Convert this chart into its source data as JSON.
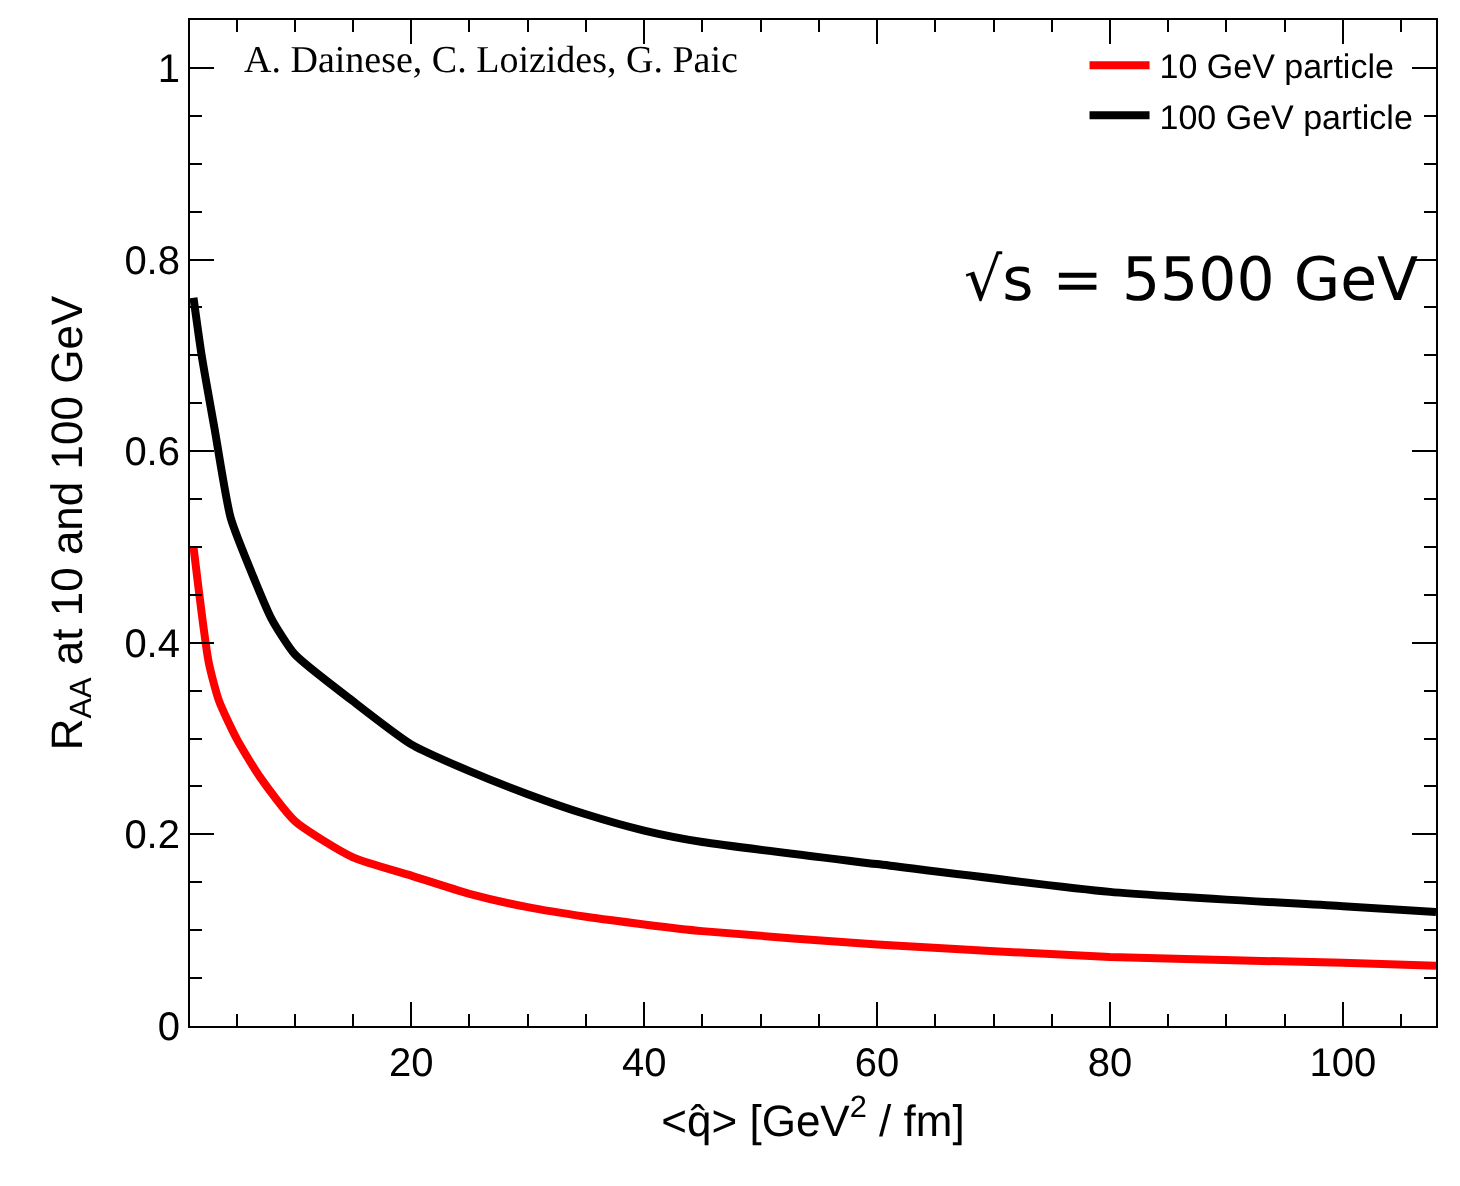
{
  "chart_data": {
    "type": "line",
    "xlabel": "<q̂> [GeV$^{2}$ / fm]",
    "ylabel": "R$_{AA}$ at 10 and 100 GeV",
    "annotations": [
      "A. Dainese, C. Loizides, G. Paic",
      "√s = 5500 GeV"
    ],
    "xlim": [
      1,
      108
    ],
    "ylim": [
      0,
      1.05
    ],
    "xticks": [
      20,
      40,
      60,
      80,
      100
    ],
    "yticks": [
      0,
      0.2,
      0.4,
      0.6,
      0.8,
      1
    ],
    "grid": false,
    "legend": "top right",
    "line_style": "solid",
    "series": [
      {
        "name": "10 GeV particle",
        "color": "#ff0000",
        "x": [
          1.3,
          2.6,
          3.5,
          5,
          7,
          10,
          15,
          20,
          25,
          30,
          35,
          40,
          45,
          60,
          80,
          100,
          108
        ],
        "values": [
          0.5,
          0.38,
          0.339,
          0.3,
          0.26,
          0.214,
          0.176,
          0.157,
          0.138,
          0.124,
          0.114,
          0.106,
          0.099,
          0.085,
          0.072,
          0.066,
          0.063
        ]
      },
      {
        "name": "100 GeV particle",
        "color": "#000000",
        "x": [
          1.3,
          2,
          3.1,
          4.5,
          6.6,
          8,
          10,
          15,
          20,
          25,
          30,
          35,
          40,
          45,
          60,
          80,
          100,
          108
        ],
        "values": [
          0.76,
          0.7,
          0.624,
          0.53,
          0.464,
          0.425,
          0.388,
          0.339,
          0.294,
          0.266,
          0.242,
          0.221,
          0.204,
          0.192,
          0.169,
          0.14,
          0.125,
          0.119
        ]
      }
    ]
  }
}
